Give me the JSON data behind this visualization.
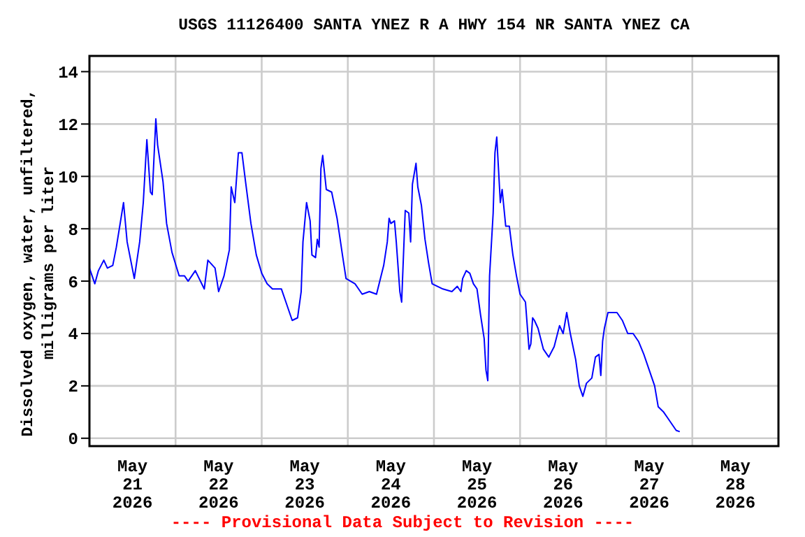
{
  "chart_data": {
    "type": "line",
    "title": "USGS 11126400 SANTA YNEZ R A HWY 154 NR SANTA YNEZ CA",
    "ylabel": "Dissolved oxygen, water, unfiltered,\nmilligrams per liter",
    "annotations": [
      "---- Provisional Data Subject to Revision ----"
    ],
    "xlim": [
      "2026-05-21T00:00",
      "2026-05-29T00:00"
    ],
    "xticks": [
      {
        "value": "2026-05-21T12:00",
        "label": "May\n21\n2026"
      },
      {
        "value": "2026-05-22T00:00",
        "label": null
      },
      {
        "value": "2026-05-22T12:00",
        "label": "May\n22\n2026"
      },
      {
        "value": "2026-05-23T00:00",
        "label": null
      },
      {
        "value": "2026-05-23T12:00",
        "label": "May\n23\n2026"
      },
      {
        "value": "2026-05-24T00:00",
        "label": null
      },
      {
        "value": "2026-05-24T12:00",
        "label": "May\n24\n2026"
      },
      {
        "value": "2026-05-25T00:00",
        "label": null
      },
      {
        "value": "2026-05-25T12:00",
        "label": "May\n25\n2026"
      },
      {
        "value": "2026-05-26T00:00",
        "label": null
      },
      {
        "value": "2026-05-26T12:00",
        "label": "May\n26\n2026"
      },
      {
        "value": "2026-05-27T00:00",
        "label": null
      },
      {
        "value": "2026-05-27T12:00",
        "label": "May\n27\n2026"
      },
      {
        "value": "2026-05-28T00:00",
        "label": null
      },
      {
        "value": "2026-05-28T12:00",
        "label": "May\n28\n2026"
      }
    ],
    "ylim": [
      -0.3,
      14.6
    ],
    "yticks": [
      0,
      2,
      4,
      6,
      8,
      10,
      12,
      14
    ],
    "grid": true,
    "legend": false,
    "marker": "none",
    "line_style": "solid",
    "series": [
      {
        "color": "#0000ff",
        "x": [
          "2026-05-21T00:00",
          "2026-05-21T01:30",
          "2026-05-21T02:30",
          "2026-05-21T04:00",
          "2026-05-21T05:00",
          "2026-05-21T06:30",
          "2026-05-21T07:30",
          "2026-05-21T09:30",
          "2026-05-21T10:30",
          "2026-05-21T12:30",
          "2026-05-21T14:00",
          "2026-05-21T15:00",
          "2026-05-21T16:00",
          "2026-05-21T17:00",
          "2026-05-21T17:30",
          "2026-05-21T18:30",
          "2026-05-21T19:00",
          "2026-05-21T20:30",
          "2026-05-21T21:30",
          "2026-05-21T23:00",
          "2026-05-22T01:00",
          "2026-05-22T02:30",
          "2026-05-22T03:30",
          "2026-05-22T05:30",
          "2026-05-22T08:00",
          "2026-05-22T09:00",
          "2026-05-22T11:00",
          "2026-05-22T12:00",
          "2026-05-22T13:30",
          "2026-05-22T15:00",
          "2026-05-22T15:30",
          "2026-05-22T16:30",
          "2026-05-22T17:30",
          "2026-05-22T18:30",
          "2026-05-22T19:30",
          "2026-05-22T21:00",
          "2026-05-22T22:30",
          "2026-05-23T00:00",
          "2026-05-23T01:30",
          "2026-05-23T03:00",
          "2026-05-23T05:30",
          "2026-05-23T07:00",
          "2026-05-23T08:30",
          "2026-05-23T10:00",
          "2026-05-23T11:00",
          "2026-05-23T11:30",
          "2026-05-23T12:30",
          "2026-05-23T13:30",
          "2026-05-23T14:00",
          "2026-05-23T15:00",
          "2026-05-23T15:30",
          "2026-05-23T16:00",
          "2026-05-23T16:30",
          "2026-05-23T17:00",
          "2026-05-23T18:00",
          "2026-05-23T19:30",
          "2026-05-23T21:00",
          "2026-05-23T22:30",
          "2026-05-23T23:30",
          "2026-05-24T02:00",
          "2026-05-24T04:00",
          "2026-05-24T06:00",
          "2026-05-24T08:00",
          "2026-05-24T10:00",
          "2026-05-24T11:00",
          "2026-05-24T11:30",
          "2026-05-24T12:00",
          "2026-05-24T13:00",
          "2026-05-24T13:30",
          "2026-05-24T14:30",
          "2026-05-24T15:00",
          "2026-05-24T16:00",
          "2026-05-24T17:00",
          "2026-05-24T17:30",
          "2026-05-24T18:00",
          "2026-05-24T19:00",
          "2026-05-24T19:30",
          "2026-05-24T20:30",
          "2026-05-24T21:30",
          "2026-05-24T22:30",
          "2026-05-24T23:30",
          "2026-05-25T02:30",
          "2026-05-25T05:00",
          "2026-05-25T06:30",
          "2026-05-25T07:30",
          "2026-05-25T08:00",
          "2026-05-25T09:00",
          "2026-05-25T10:00",
          "2026-05-25T11:00",
          "2026-05-25T12:00",
          "2026-05-25T13:00",
          "2026-05-25T14:00",
          "2026-05-25T14:30",
          "2026-05-25T15:00",
          "2026-05-25T15:30",
          "2026-05-25T16:30",
          "2026-05-25T17:00",
          "2026-05-25T17:30",
          "2026-05-25T18:30",
          "2026-05-25T19:00",
          "2026-05-25T20:00",
          "2026-05-25T21:00",
          "2026-05-25T22:00",
          "2026-05-25T23:00",
          "2026-05-26T00:00",
          "2026-05-26T01:30",
          "2026-05-26T02:30",
          "2026-05-26T03:00",
          "2026-05-26T03:30",
          "2026-05-26T04:00",
          "2026-05-26T05:00",
          "2026-05-26T06:30",
          "2026-05-26T08:00",
          "2026-05-26T09:30",
          "2026-05-26T11:00",
          "2026-05-26T12:00",
          "2026-05-26T13:00",
          "2026-05-26T14:00",
          "2026-05-26T15:30",
          "2026-05-26T16:30",
          "2026-05-26T17:30",
          "2026-05-26T18:30",
          "2026-05-26T20:00",
          "2026-05-26T21:00",
          "2026-05-26T22:00",
          "2026-05-26T22:30",
          "2026-05-26T23:00",
          "2026-05-26T23:30",
          "2026-05-27T00:30",
          "2026-05-27T01:30",
          "2026-05-27T03:00",
          "2026-05-27T04:30",
          "2026-05-27T06:00",
          "2026-05-27T07:30",
          "2026-05-27T09:00",
          "2026-05-27T10:30",
          "2026-05-27T12:00",
          "2026-05-27T13:30",
          "2026-05-27T14:30",
          "2026-05-27T16:00",
          "2026-05-27T17:00",
          "2026-05-27T18:30",
          "2026-05-27T19:30",
          "2026-05-27T20:30"
        ],
        "values": [
          6.5,
          5.9,
          6.4,
          6.8,
          6.5,
          6.6,
          7.3,
          9.0,
          7.5,
          6.1,
          7.5,
          9.0,
          11.4,
          9.4,
          9.3,
          12.2,
          11.2,
          9.8,
          8.2,
          7.1,
          6.2,
          6.2,
          6.0,
          6.4,
          5.7,
          6.8,
          6.5,
          5.6,
          6.2,
          7.2,
          9.6,
          9.0,
          10.9,
          10.9,
          9.8,
          8.2,
          7.0,
          6.3,
          5.9,
          5.7,
          5.7,
          5.1,
          4.5,
          4.6,
          5.6,
          7.5,
          9.0,
          8.3,
          7.0,
          6.9,
          7.6,
          7.3,
          10.3,
          10.8,
          9.5,
          9.4,
          8.4,
          7.0,
          6.1,
          5.9,
          5.5,
          5.6,
          5.5,
          6.6,
          7.5,
          8.4,
          8.2,
          8.3,
          7.5,
          5.6,
          5.2,
          8.7,
          8.6,
          7.5,
          9.7,
          10.5,
          9.6,
          8.9,
          7.6,
          6.7,
          5.9,
          5.7,
          5.6,
          5.8,
          5.6,
          6.1,
          6.4,
          6.3,
          5.9,
          5.7,
          4.7,
          3.8,
          2.6,
          2.2,
          6.2,
          8.6,
          10.9,
          11.5,
          9.0,
          9.5,
          8.1,
          8.1,
          7.0,
          6.2,
          5.5,
          5.2,
          3.4,
          3.6,
          4.6,
          4.5,
          4.2,
          3.4,
          3.1,
          3.5,
          4.3,
          4.0,
          4.8,
          4.0,
          3.0,
          2.0,
          1.6,
          2.1,
          2.3,
          3.1,
          3.2,
          2.4,
          3.7,
          4.2,
          4.8,
          4.8,
          4.8,
          4.5,
          4.0,
          4.0,
          3.7,
          3.2,
          2.6,
          2.0,
          1.2,
          1.0,
          0.8,
          0.5,
          0.3,
          0.25
        ]
      }
    ]
  }
}
